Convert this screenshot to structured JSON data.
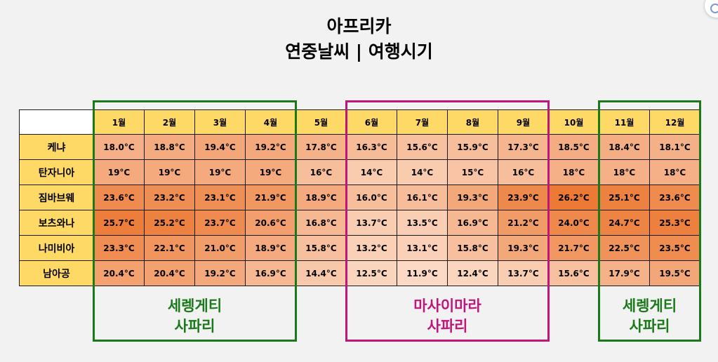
{
  "title": {
    "line1": "아프리카",
    "line2": "연중날씨 | 여행시기"
  },
  "chart_data": {
    "type": "heatmap",
    "months": [
      "1월",
      "2월",
      "3월",
      "4월",
      "5월",
      "6월",
      "7월",
      "8월",
      "9월",
      "10월",
      "11월",
      "12월"
    ],
    "rows": [
      {
        "name": "케냐",
        "cells": [
          "18.0°C",
          "18.8°C",
          "19.4°C",
          "19.2°C",
          "17.8°C",
          "16.3°C",
          "15.6°C",
          "15.9°C",
          "17.3°C",
          "18.5°C",
          "18.4°C",
          "18.1°C"
        ]
      },
      {
        "name": "탄자니아",
        "cells": [
          "19°C",
          "19°C",
          "19°C",
          "19°C",
          "16°C",
          "14°C",
          "14°C",
          "15°C",
          "16°C",
          "18°C",
          "18°C",
          "18°C"
        ]
      },
      {
        "name": "짐바브웨",
        "cells": [
          "23.6°C",
          "23.2°C",
          "23.1°C",
          "21.9°C",
          "18.9°C",
          "16.0°C",
          "16.1°C",
          "19.3°C",
          "23.9°C",
          "26.2°C",
          "25.1°C",
          "23.6°C"
        ]
      },
      {
        "name": "보츠와나",
        "cells": [
          "25.7°C",
          "25.2°C",
          "23.7°C",
          "20.6°C",
          "16.8°C",
          "13.7°C",
          "13.5°C",
          "16.9°C",
          "21.2°C",
          "24.0°C",
          "24.7°C",
          "25.3°C"
        ]
      },
      {
        "name": "나미비아",
        "cells": [
          "23.3°C",
          "22.1°C",
          "21.0°C",
          "18.9°C",
          "15.8°C",
          "13.2°C",
          "13.1°C",
          "15.8°C",
          "19.3°C",
          "21.7°C",
          "22.5°C",
          "23.5°C"
        ]
      },
      {
        "name": "남아공",
        "cells": [
          "20.4°C",
          "20.4°C",
          "19.2°C",
          "16.9°C",
          "14.4°C",
          "12.5°C",
          "11.9°C",
          "12.4°C",
          "13.7°C",
          "15.6°C",
          "17.9°C",
          "19.5°C"
        ]
      }
    ],
    "highlight_groups": [
      {
        "months": [
          "1월",
          "2월",
          "3월",
          "4월"
        ],
        "label_line1": "세렝게티",
        "label_line2": "사파리",
        "color": "#1a7a1a"
      },
      {
        "months": [
          "6월",
          "7월",
          "8월",
          "9월"
        ],
        "label_line1": "마사이마라",
        "label_line2": "사파리",
        "color": "#c0157a"
      },
      {
        "months": [
          "11월",
          "12월"
        ],
        "label_line1": "세렝게티",
        "label_line2": "사파리",
        "color": "#1a7a1a"
      }
    ],
    "colors": {
      "header_fill": "#ffd966",
      "scale_low": "#fbd9c4",
      "scale_high": "#ec7a35"
    }
  }
}
